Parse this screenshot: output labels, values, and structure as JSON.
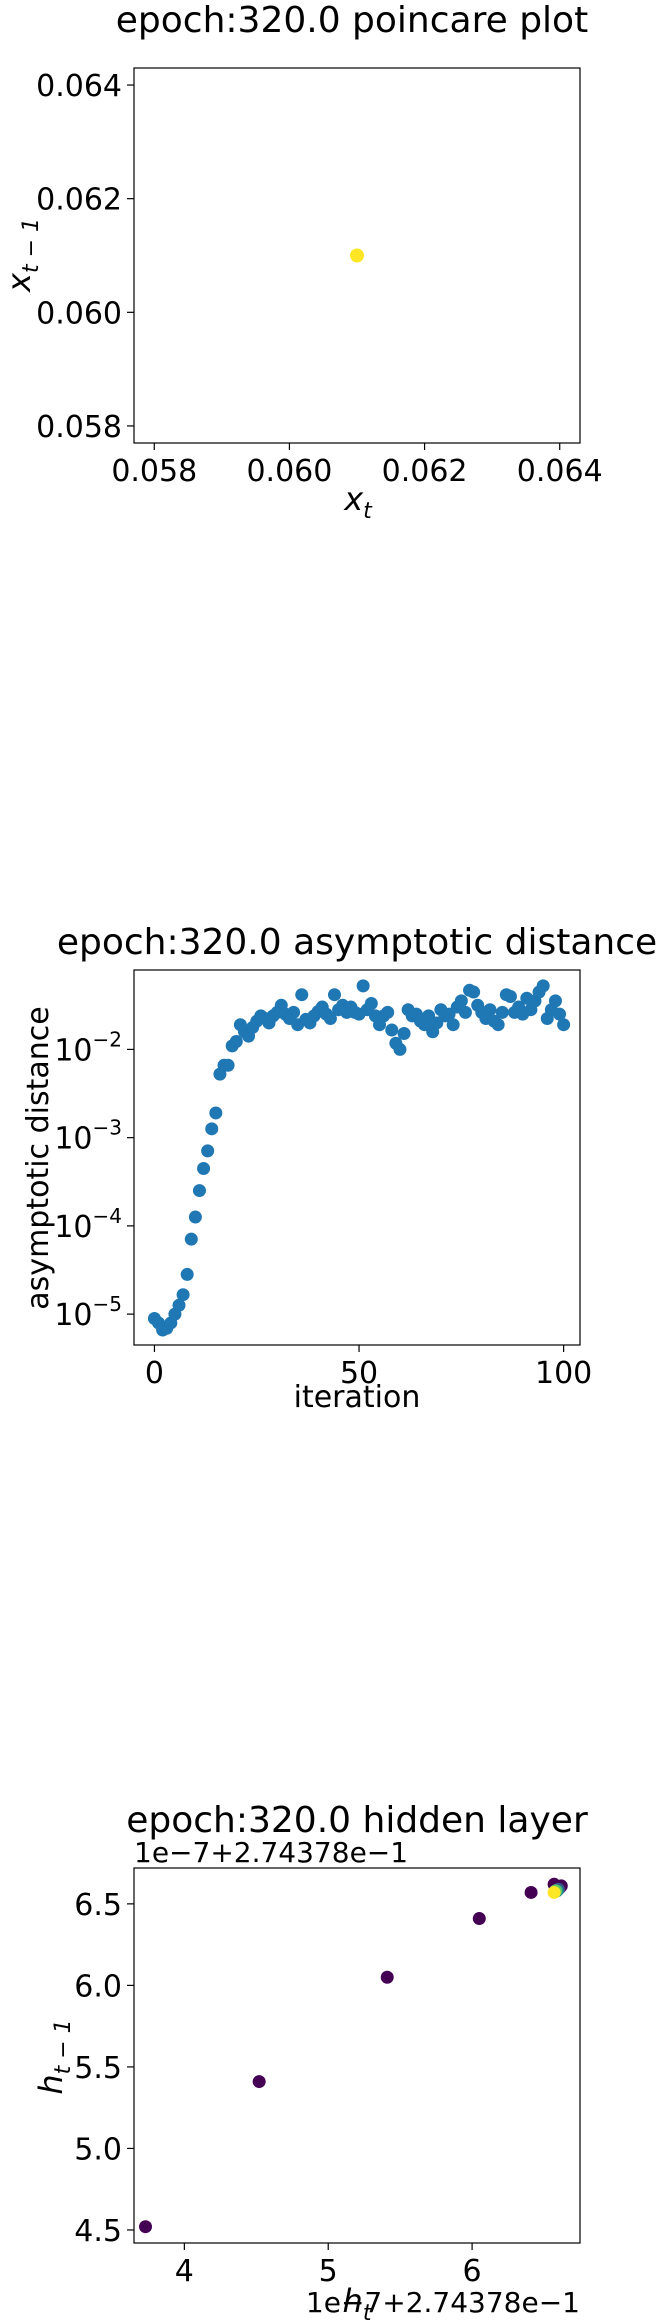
{
  "chart_data": [
    {
      "type": "scatter",
      "title": "epoch:320.0 poincare plot",
      "xlabel": "x_t",
      "ylabel": "x_{t-1}",
      "xlim": [
        0.0577,
        0.0643
      ],
      "ylim": [
        0.0577,
        0.0643
      ],
      "xticks": [
        0.058,
        0.06,
        0.062,
        0.064
      ],
      "yticks": [
        0.058,
        0.06,
        0.062,
        0.064
      ],
      "xtick_labels": [
        "0.058",
        "0.060",
        "0.062",
        "0.064"
      ],
      "ytick_labels": [
        "0.058",
        "0.060",
        "0.062",
        "0.064"
      ],
      "points": [
        {
          "x": 0.061,
          "y": 0.061
        }
      ],
      "point_color": "#fde725",
      "grid": false
    },
    {
      "type": "scatter",
      "title": "epoch:320.0 asymptotic distance",
      "xlabel": "iteration",
      "ylabel": "asymptotic distance",
      "yscale": "log",
      "xlim": [
        -5,
        104
      ],
      "ylim_log10": [
        -5.35,
        -1.1
      ],
      "xticks": [
        0,
        50,
        100
      ],
      "xtick_labels": [
        "0",
        "50",
        "100"
      ],
      "yticks_log10": [
        -5,
        -4,
        -3,
        -2
      ],
      "ytick_labels": [
        "10",
        "10",
        "10",
        "10"
      ],
      "ytick_exponents": [
        "−5",
        "−4",
        "−3",
        "−2"
      ],
      "point_color": "#1f77b4",
      "grid": false,
      "y_log10": [
        -5.05,
        -5.1,
        -5.18,
        -5.16,
        -5.1,
        -5.0,
        -4.9,
        -4.78,
        -4.55,
        -4.15,
        -3.9,
        -3.6,
        -3.35,
        -3.15,
        -2.9,
        -2.72,
        -2.28,
        -2.18,
        -2.18,
        -1.96,
        -1.91,
        -1.72,
        -1.8,
        -1.85,
        -1.75,
        -1.68,
        -1.62,
        -1.65,
        -1.7,
        -1.62,
        -1.58,
        -1.5,
        -1.6,
        -1.65,
        -1.58,
        -1.72,
        -1.38,
        -1.66,
        -1.7,
        -1.62,
        -1.57,
        -1.52,
        -1.6,
        -1.65,
        -1.38,
        -1.55,
        -1.5,
        -1.58,
        -1.52,
        -1.58,
        -1.6,
        -1.28,
        -1.55,
        -1.48,
        -1.62,
        -1.72,
        -1.62,
        -1.58,
        -1.78,
        -1.93,
        -2.0,
        -1.82,
        -1.55,
        -1.62,
        -1.6,
        -1.68,
        -1.72,
        -1.62,
        -1.8,
        -1.7,
        -1.55,
        -1.62,
        -1.6,
        -1.72,
        -1.52,
        -1.45,
        -1.58,
        -1.33,
        -1.35,
        -1.5,
        -1.58,
        -1.65,
        -1.55,
        -1.68,
        -1.72,
        -1.58,
        -1.38,
        -1.4,
        -1.58,
        -1.52,
        -1.6,
        -1.42,
        -1.55,
        -1.45,
        -1.35,
        -1.28,
        -1.65,
        -1.55,
        -1.45,
        -1.6,
        -1.72
      ]
    },
    {
      "type": "scatter",
      "title": "epoch:320.0 hidden layer",
      "xlabel": "h_t",
      "ylabel": "h_{t-1}",
      "x_offset_label": "1e−7+2.74378e−1",
      "y_offset_label": "1e−7+2.74378e−1",
      "xlim": [
        3.65,
        6.75
      ],
      "ylim": [
        4.42,
        6.72
      ],
      "xticks": [
        4,
        5,
        6
      ],
      "xtick_labels": [
        "4",
        "5",
        "6"
      ],
      "yticks": [
        4.5,
        5.0,
        5.5,
        6.0,
        6.5
      ],
      "ytick_labels": [
        "4.5",
        "5.0",
        "5.5",
        "6.0",
        "6.5"
      ],
      "grid": false,
      "points": [
        {
          "x": 3.73,
          "y": 4.52,
          "color": "#440154"
        },
        {
          "x": 4.52,
          "y": 5.41,
          "color": "#440154"
        },
        {
          "x": 5.41,
          "y": 6.05,
          "color": "#440154"
        },
        {
          "x": 6.05,
          "y": 6.41,
          "color": "#440154"
        },
        {
          "x": 6.41,
          "y": 6.57,
          "color": "#440154"
        },
        {
          "x": 6.57,
          "y": 6.62,
          "color": "#440154"
        },
        {
          "x": 6.62,
          "y": 6.61,
          "color": "#440154"
        },
        {
          "x": 6.61,
          "y": 6.6,
          "color": "#440154"
        },
        {
          "x": 6.6,
          "y": 6.59,
          "color": "#3b528b"
        },
        {
          "x": 6.59,
          "y": 6.58,
          "color": "#21918c"
        },
        {
          "x": 6.58,
          "y": 6.58,
          "color": "#5ec962"
        },
        {
          "x": 6.57,
          "y": 6.57,
          "color": "#fde725"
        }
      ]
    }
  ]
}
